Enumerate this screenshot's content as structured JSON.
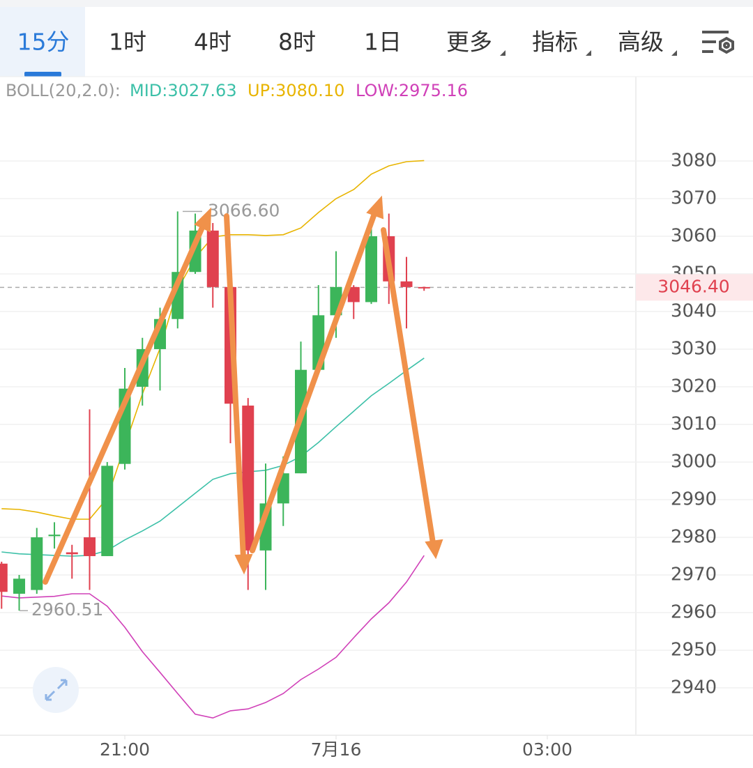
{
  "tabs": [
    "15分",
    "1时",
    "4时",
    "8时",
    "1日",
    "更多",
    "指标",
    "高级"
  ],
  "chart_data": {
    "type": "candlestick",
    "legend": [
      "BOLL(20,2.0):",
      "MID:3027.63",
      "UP:3080.10",
      "LOW:2975.16"
    ],
    "open": [
      2973,
      2965,
      2966,
      2980.3,
      2976,
      2980,
      2975,
      2999.5,
      3020,
      3030,
      3038,
      3050.5,
      3061.5,
      3046.5,
      3015,
      2976.5,
      2989,
      2997,
      3024.5,
      3039,
      3046.5,
      3042.5,
      3060,
      3048,
      3046.5
    ],
    "high": [
      2973.5,
      2970,
      2982.5,
      2984,
      2978,
      3014,
      3000,
      3025,
      3033,
      3041,
      3066.6,
      3066,
      3063.5,
      3047,
      3017,
      2999.6,
      3001.5,
      3032,
      3047,
      3056,
      3047,
      3063,
      3066,
      3054.5,
      3046.6
    ],
    "low": [
      2961,
      2960.51,
      2965,
      2977,
      2969,
      2966,
      2975,
      2998,
      3015,
      3019,
      3035.5,
      3050,
      3041,
      3005,
      2966,
      2966,
      2983,
      2997,
      3024,
      3033,
      3038,
      3042,
      3042,
      3035.5,
      3045.5
    ],
    "close": [
      2965.5,
      2969,
      2980,
      2980.7,
      2975.5,
      2975,
      2999,
      3019.5,
      3030,
      3038,
      3050.5,
      3061.5,
      3046.5,
      3015.5,
      2976.5,
      2989,
      2997,
      3024.5,
      3039,
      3046.5,
      3042.5,
      3060,
      3048,
      3046.5,
      3046.4
    ],
    "up_color": "#3cb55a",
    "down_color": "#e0414f",
    "bands": [
      {
        "color": "#3cc0a8",
        "values": [
          2976.1,
          2975.6,
          2975.4,
          2975.2,
          2975,
          2975.2,
          2976.5,
          2979.3,
          2981.7,
          2984.3,
          2988,
          2991.7,
          2995.4,
          2996.9,
          2997.4,
          2997.8,
          2999.1,
          3001.5,
          3005.2,
          3009.4,
          3013.5,
          3017.6,
          3020.9,
          3024.3,
          3027.63
        ]
      },
      {
        "color": "#e8b400",
        "values": [
          2987.6,
          2987.4,
          2986.7,
          2985.7,
          2984.8,
          2984.8,
          2990.4,
          3004.3,
          3018.1,
          3030.2,
          3045.9,
          3054.3,
          3059.8,
          3060.4,
          3060.4,
          3060.2,
          3060.4,
          3062.2,
          3066.3,
          3070,
          3072.4,
          3076.5,
          3078.7,
          3079.8,
          3080.1
        ]
      },
      {
        "color": "#d040b8",
        "values": [
          2964.4,
          2963.9,
          2964.1,
          2964.3,
          2965,
          2965,
          2961.7,
          2956.1,
          2949.6,
          2944.1,
          2938.5,
          2933,
          2932,
          2933.9,
          2934.4,
          2936.1,
          2938.5,
          2942.2,
          2945,
          2948.1,
          2953.3,
          2958.3,
          2962.6,
          2968.1,
          2975.16
        ]
      }
    ],
    "high_marker": {
      "value": 3066.6,
      "label": "3066.60"
    },
    "low_marker": 2960.51,
    "last_price": {
      "value": 3046.4,
      "label": "3046.40"
    },
    "xlim": [
      -0.09,
      36.03
    ],
    "xticks": [
      {
        "value": 7,
        "label": "21:00"
      },
      {
        "value": 19,
        "label": "7月16"
      },
      {
        "value": 31,
        "label": "03:00"
      }
    ],
    "ylim": [
      2927.4,
      3102.4
    ],
    "yticks": [
      2940,
      2950,
      2960,
      2970,
      2980,
      2990,
      3000,
      3010,
      3020,
      3030,
      3040,
      3050,
      3060,
      3070,
      3080
    ],
    "grid": true
  }
}
